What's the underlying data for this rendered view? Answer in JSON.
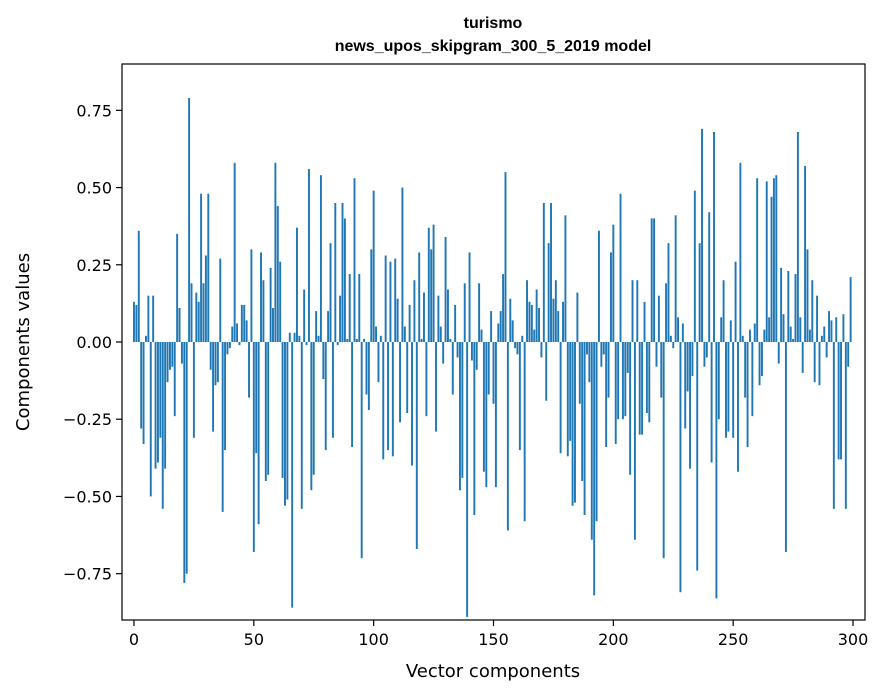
{
  "chart_data": {
    "type": "bar",
    "title": [
      "turismo",
      "news_upos_skipgram_300_5_2019 model"
    ],
    "xlabel": "Vector components",
    "ylabel": "Components values",
    "xlim": [
      -5,
      305
    ],
    "ylim": [
      -0.9,
      0.9
    ],
    "xticks": [
      0,
      50,
      100,
      150,
      200,
      250,
      300
    ],
    "xtick_labels": [
      "0",
      "50",
      "100",
      "150",
      "200",
      "250",
      "300"
    ],
    "yticks": [
      -0.75,
      -0.5,
      -0.25,
      0.0,
      0.25,
      0.5,
      0.75
    ],
    "ytick_labels": [
      "−0.75",
      "−0.50",
      "−0.25",
      "0.00",
      "0.25",
      "0.50",
      "0.75"
    ],
    "bar_color": "#1f77b4",
    "grid": false,
    "x": [
      0,
      1,
      2,
      3,
      4,
      5,
      6,
      7,
      8,
      9,
      10,
      11,
      12,
      13,
      14,
      15,
      16,
      17,
      18,
      19,
      20,
      21,
      22,
      23,
      24,
      25,
      26,
      27,
      28,
      29,
      30,
      31,
      32,
      33,
      34,
      35,
      36,
      37,
      38,
      39,
      40,
      41,
      42,
      43,
      44,
      45,
      46,
      47,
      48,
      49,
      50,
      51,
      52,
      53,
      54,
      55,
      56,
      57,
      58,
      59,
      60,
      61,
      62,
      63,
      64,
      65,
      66,
      67,
      68,
      69,
      70,
      71,
      72,
      73,
      74,
      75,
      76,
      77,
      78,
      79,
      80,
      81,
      82,
      83,
      84,
      85,
      86,
      87,
      88,
      89,
      90,
      91,
      92,
      93,
      94,
      95,
      96,
      97,
      98,
      99,
      100,
      101,
      102,
      103,
      104,
      105,
      106,
      107,
      108,
      109,
      110,
      111,
      112,
      113,
      114,
      115,
      116,
      117,
      118,
      119,
      120,
      121,
      122,
      123,
      124,
      125,
      126,
      127,
      128,
      129,
      130,
      131,
      132,
      133,
      134,
      135,
      136,
      137,
      138,
      139,
      140,
      141,
      142,
      143,
      144,
      145,
      146,
      147,
      148,
      149,
      150,
      151,
      152,
      153,
      154,
      155,
      156,
      157,
      158,
      159,
      160,
      161,
      162,
      163,
      164,
      165,
      166,
      167,
      168,
      169,
      170,
      171,
      172,
      173,
      174,
      175,
      176,
      177,
      178,
      179,
      180,
      181,
      182,
      183,
      184,
      185,
      186,
      187,
      188,
      189,
      190,
      191,
      192,
      193,
      194,
      195,
      196,
      197,
      198,
      199,
      200,
      201,
      202,
      203,
      204,
      205,
      206,
      207,
      208,
      209,
      210,
      211,
      212,
      213,
      214,
      215,
      216,
      217,
      218,
      219,
      220,
      221,
      222,
      223,
      224,
      225,
      226,
      227,
      228,
      229,
      230,
      231,
      232,
      233,
      234,
      235,
      236,
      237,
      238,
      239,
      240,
      241,
      242,
      243,
      244,
      245,
      246,
      247,
      248,
      249,
      250,
      251,
      252,
      253,
      254,
      255,
      256,
      257,
      258,
      259,
      260,
      261,
      262,
      263,
      264,
      265,
      266,
      267,
      268,
      269,
      270,
      271,
      272,
      273,
      274,
      275,
      276,
      277,
      278,
      279,
      280,
      281,
      282,
      283,
      284,
      285,
      286,
      287,
      288,
      289,
      290,
      291,
      292,
      293,
      294,
      295,
      296,
      297,
      298,
      299
    ],
    "values": [
      0.13,
      0.12,
      0.36,
      -0.28,
      -0.33,
      0.02,
      0.15,
      -0.5,
      0.15,
      -0.41,
      -0.39,
      -0.31,
      -0.54,
      -0.41,
      -0.13,
      -0.09,
      -0.08,
      -0.24,
      0.35,
      0.11,
      -0.07,
      -0.78,
      -0.75,
      0.79,
      0.19,
      -0.31,
      0.16,
      0.13,
      0.48,
      0.19,
      0.28,
      0.48,
      -0.09,
      -0.29,
      -0.14,
      -0.13,
      0.27,
      -0.55,
      -0.35,
      -0.04,
      -0.02,
      0.05,
      0.58,
      0.06,
      -0.01,
      0.12,
      0.12,
      0.07,
      -0.18,
      0.3,
      -0.68,
      -0.36,
      -0.59,
      0.29,
      0.2,
      -0.45,
      -0.43,
      0.24,
      0.11,
      0.58,
      0.44,
      0.26,
      -0.44,
      -0.53,
      -0.51,
      0.03,
      -0.86,
      0.03,
      0.37,
      0.02,
      -0.54,
      0.17,
      -0.01,
      0.56,
      -0.48,
      -0.43,
      0.1,
      0.02,
      0.54,
      -0.12,
      -0.35,
      0.1,
      0.32,
      -0.31,
      0.45,
      -0.01,
      0.15,
      0.45,
      0.4,
      0.01,
      0.22,
      -0.34,
      0.53,
      0.01,
      0.22,
      -0.7,
      0.01,
      -0.17,
      -0.22,
      0.3,
      0.49,
      0.05,
      -0.13,
      0.02,
      -0.38,
      0.28,
      -0.35,
      0.26,
      -0.37,
      0.27,
      0.14,
      -0.26,
      0.5,
      0.05,
      -0.23,
      0.12,
      -0.4,
      0.2,
      -0.67,
      0.29,
      0.01,
      0.16,
      -0.24,
      0.37,
      0.3,
      0.38,
      -0.29,
      0.15,
      0.05,
      -0.07,
      0.34,
      0.17,
      0.01,
      -0.17,
      0.12,
      -0.05,
      -0.48,
      -0.44,
      0.19,
      -0.89,
      0.29,
      -0.06,
      -0.56,
      -0.09,
      0.19,
      0.04,
      -0.42,
      -0.47,
      -0.17,
      0.1,
      -0.2,
      -0.47,
      0.06,
      0.1,
      0.22,
      0.55,
      -0.61,
      0.14,
      0.07,
      -0.02,
      -0.04,
      -0.35,
      0.02,
      -0.58,
      0.2,
      0.13,
      0.12,
      0.04,
      0.17,
      0.11,
      -0.05,
      0.45,
      -0.19,
      0.32,
      0.45,
      0.14,
      0.2,
      0.1,
      -0.36,
      0.13,
      0.41,
      -0.37,
      -0.32,
      -0.53,
      -0.52,
      0.16,
      -0.2,
      -0.45,
      -0.56,
      -0.04,
      -0.13,
      -0.64,
      -0.82,
      -0.58,
      0.36,
      -0.08,
      -0.04,
      -0.34,
      -0.18,
      0.29,
      0.38,
      -0.33,
      -0.25,
      0.48,
      -0.25,
      -0.24,
      -0.1,
      -0.43,
      0.2,
      -0.64,
      0.2,
      -0.3,
      -0.3,
      0.13,
      -0.23,
      -0.26,
      0.4,
      0.4,
      -0.08,
      0.15,
      -0.18,
      -0.7,
      0.19,
      0.32,
      0.02,
      -0.02,
      0.41,
      0.08,
      -0.81,
      0.06,
      -0.28,
      -0.16,
      -0.41,
      -0.11,
      0.49,
      -0.74,
      0.32,
      0.69,
      -0.08,
      -0.05,
      0.42,
      -0.39,
      0.68,
      -0.83,
      -0.25,
      0.08,
      0.2,
      -0.31,
      -0.29,
      0.07,
      -0.31,
      0.26,
      -0.42,
      0.58,
      0.02,
      -0.18,
      -0.34,
      0.04,
      -0.24,
      0.06,
      0.53,
      -0.14,
      -0.11,
      0.04,
      0.52,
      0.08,
      0.47,
      0.53,
      0.54,
      -0.07,
      0.24,
      0.09,
      -0.68,
      0.23,
      0.05,
      0.01,
      0.22,
      0.68,
      0.08,
      -0.1,
      0.57,
      0.3,
      0.04,
      0.2,
      -0.13,
      0.15,
      -0.14,
      0.02,
      0.05,
      -0.05,
      0.1,
      0.07,
      -0.54,
      0.08,
      -0.38,
      -0.38,
      0.09,
      -0.54,
      -0.08,
      0.21
    ]
  }
}
